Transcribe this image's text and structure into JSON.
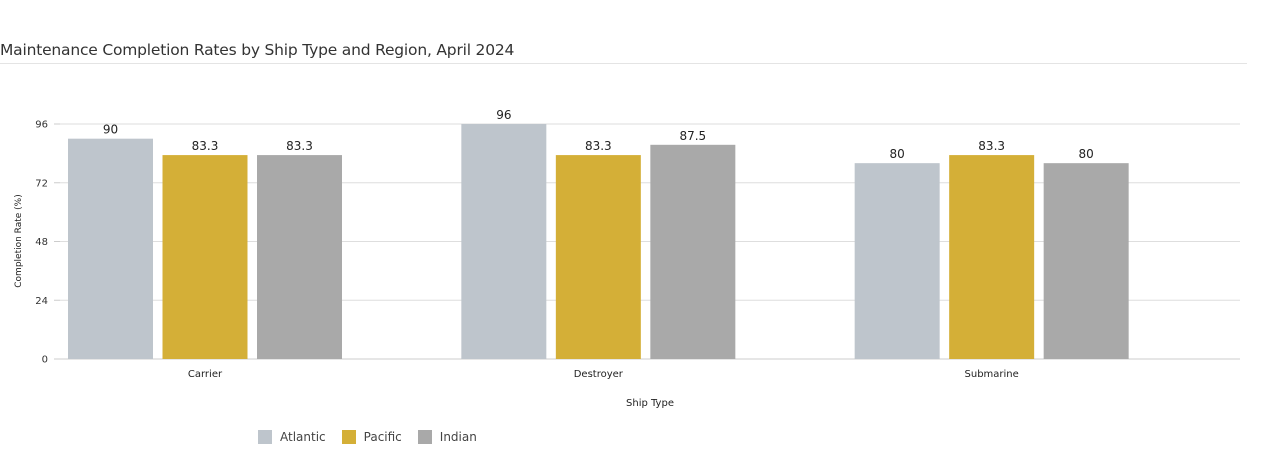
{
  "chart_data": {
    "type": "bar",
    "title": "Maintenance Completion Rates by Ship Type and Region, April 2024",
    "xlabel": "Ship Type",
    "ylabel": "Completion Rate (%)",
    "categories": [
      "Carrier",
      "Destroyer",
      "Submarine"
    ],
    "series": [
      {
        "name": "Atlantic",
        "color": "#bec5cc",
        "values": [
          90,
          96,
          80
        ],
        "labels": [
          "90",
          "96",
          "80"
        ]
      },
      {
        "name": "Pacific",
        "color": "#d4af37",
        "values": [
          83.3,
          83.3,
          83.3
        ],
        "labels": [
          "83.3",
          "83.3",
          "83.3"
        ]
      },
      {
        "name": "Indian",
        "color": "#a9a9a9",
        "values": [
          83.3,
          87.5,
          80
        ],
        "labels": [
          "83.3",
          "87.5",
          "80"
        ]
      }
    ],
    "ylim": [
      0,
      96
    ],
    "yticks": [
      "0",
      "24",
      "48",
      "72",
      "96"
    ],
    "grid": true,
    "legend_position": "bottom-left"
  }
}
